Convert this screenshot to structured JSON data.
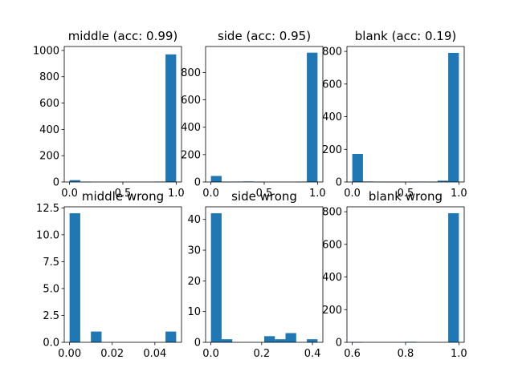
{
  "colors": {
    "bar": "#1f77b4",
    "axis": "#000000",
    "background": "#ffffff"
  },
  "chart_data": [
    {
      "type": "bar",
      "title": "middle (acc: 0.99)",
      "xlim": [
        -0.05,
        1.05
      ],
      "ylim": [
        0,
        1030
      ],
      "xticks": [
        0.0,
        0.5,
        1.0
      ],
      "xtick_labels": [
        "0.0",
        "0.5",
        "1.0"
      ],
      "yticks": [
        0,
        200,
        400,
        600,
        800,
        1000
      ],
      "ytick_labels": [
        "0",
        "200",
        "400",
        "600",
        "800",
        "1000"
      ],
      "bin_edges": [
        0.0,
        0.1,
        0.2,
        0.3,
        0.4,
        0.5,
        0.6,
        0.7,
        0.8,
        0.9,
        1.0
      ],
      "values": [
        14,
        1,
        0,
        0,
        0,
        0,
        0,
        0,
        3,
        970
      ]
    },
    {
      "type": "bar",
      "title": "side (acc: 0.95)",
      "xlim": [
        -0.05,
        1.05
      ],
      "ylim": [
        0,
        990
      ],
      "xticks": [
        0.0,
        0.5,
        1.0
      ],
      "xtick_labels": [
        "0.0",
        "0.5",
        "1.0"
      ],
      "yticks": [
        0,
        200,
        400,
        600,
        800
      ],
      "ytick_labels": [
        "0",
        "200",
        "400",
        "600",
        "800"
      ],
      "bin_edges": [
        0.0,
        0.1,
        0.2,
        0.3,
        0.4,
        0.5,
        0.6,
        0.7,
        0.8,
        0.9,
        1.0
      ],
      "values": [
        44,
        1,
        3,
        4,
        1,
        0,
        0,
        0,
        2,
        945
      ]
    },
    {
      "type": "bar",
      "title": "blank (acc: 0.19)",
      "xlim": [
        -0.05,
        1.05
      ],
      "ylim": [
        0,
        830
      ],
      "xticks": [
        0.0,
        0.5,
        1.0
      ],
      "xtick_labels": [
        "0.0",
        "0.5",
        "1.0"
      ],
      "yticks": [
        0,
        200,
        400,
        600,
        800
      ],
      "ytick_labels": [
        "0",
        "200",
        "400",
        "600",
        "800"
      ],
      "bin_edges": [
        0.0,
        0.1,
        0.2,
        0.3,
        0.4,
        0.5,
        0.6,
        0.7,
        0.8,
        0.9,
        1.0
      ],
      "values": [
        172,
        3,
        2,
        1,
        1,
        1,
        2,
        1,
        8,
        791
      ]
    },
    {
      "type": "bar",
      "title": "middle wrong",
      "xlim": [
        -0.0025,
        0.0525
      ],
      "ylim": [
        0,
        12.6
      ],
      "xticks": [
        0.0,
        0.02,
        0.04
      ],
      "xtick_labels": [
        "0.00",
        "0.02",
        "0.04"
      ],
      "yticks": [
        0,
        2.5,
        5.0,
        7.5,
        10.0,
        12.5
      ],
      "ytick_labels": [
        "0.0",
        "2.5",
        "5.0",
        "7.5",
        "10.0",
        "12.5"
      ],
      "bin_edges": [
        0.0,
        0.005,
        0.01,
        0.015,
        0.02,
        0.025,
        0.03,
        0.035,
        0.04,
        0.045,
        0.05
      ],
      "values": [
        12,
        0,
        1,
        0,
        0,
        0,
        0,
        0,
        0,
        1
      ]
    },
    {
      "type": "bar",
      "title": "side wrong",
      "xlim": [
        -0.021,
        0.441
      ],
      "ylim": [
        0,
        44.1
      ],
      "xticks": [
        0.0,
        0.2,
        0.4
      ],
      "xtick_labels": [
        "0.0",
        "0.2",
        "0.4"
      ],
      "yticks": [
        0,
        10,
        20,
        30,
        40
      ],
      "ytick_labels": [
        "0",
        "10",
        "20",
        "30",
        "40"
      ],
      "bin_edges": [
        0.0,
        0.042,
        0.084,
        0.126,
        0.168,
        0.21,
        0.252,
        0.294,
        0.336,
        0.378,
        0.42
      ],
      "values": [
        42,
        1,
        0,
        0,
        0,
        2,
        1,
        3,
        0,
        1
      ]
    },
    {
      "type": "bar",
      "title": "blank wrong",
      "xlim": [
        0.58,
        1.02
      ],
      "ylim": [
        0,
        830
      ],
      "xticks": [
        0.6,
        0.8,
        1.0
      ],
      "xtick_labels": [
        "0.6",
        "0.8",
        "1.0"
      ],
      "yticks": [
        0,
        200,
        400,
        600,
        800
      ],
      "ytick_labels": [
        "0",
        "200",
        "400",
        "600",
        "800"
      ],
      "bin_edges": [
        0.6,
        0.64,
        0.68,
        0.72,
        0.76,
        0.8,
        0.84,
        0.88,
        0.92,
        0.96,
        1.0
      ],
      "values": [
        1,
        0,
        0,
        0,
        0,
        3,
        0,
        0,
        0,
        791
      ]
    }
  ]
}
